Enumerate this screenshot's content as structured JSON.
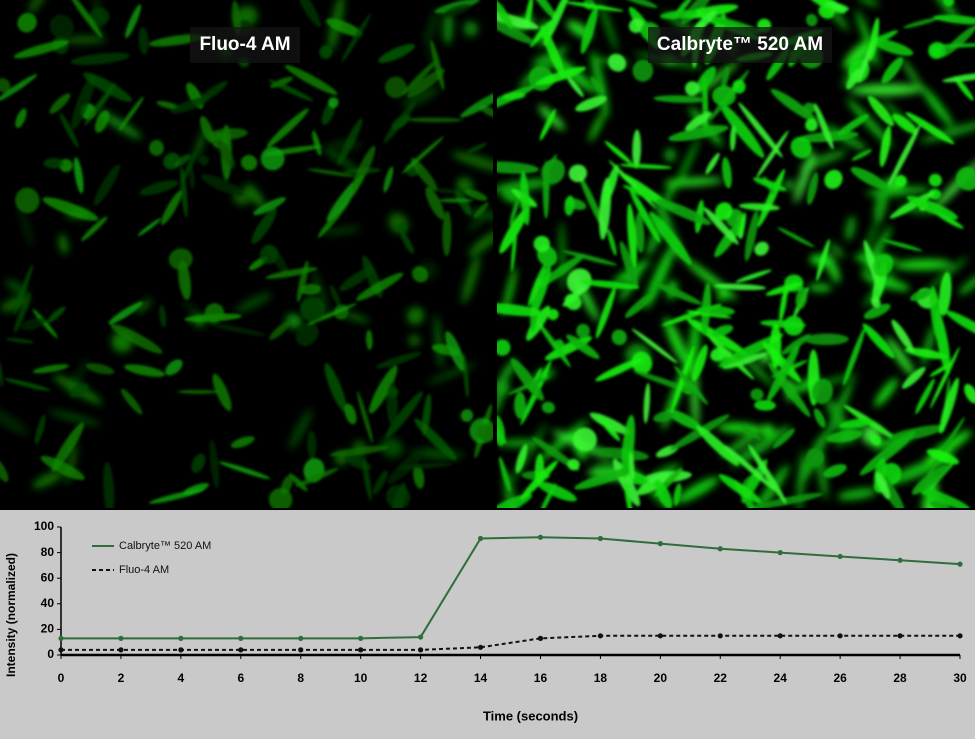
{
  "panels": [
    {
      "label": "Fluo-4 AM",
      "brightness": "dim"
    },
    {
      "label": "Calbryte™ 520 AM",
      "brightness": "bright"
    }
  ],
  "chart_data": {
    "type": "line",
    "x_label": "Time (seconds)",
    "y_label": "Intensity (normalized)",
    "x": [
      0,
      2,
      4,
      6,
      8,
      10,
      12,
      14,
      16,
      18,
      20,
      22,
      24,
      26,
      28,
      30
    ],
    "series": [
      {
        "name": "Calbryte™ 520 AM",
        "color": "#2f6e3c",
        "style": "solid",
        "values": [
          13,
          13,
          13,
          13,
          13,
          13,
          14,
          91,
          92,
          91,
          87,
          83,
          80,
          77,
          74,
          71
        ]
      },
      {
        "name": "Fluo-4 AM",
        "color": "#111111",
        "style": "dashed",
        "values": [
          4,
          4,
          4,
          4,
          4,
          4,
          4,
          6,
          13,
          15,
          15,
          15,
          15,
          15,
          15,
          15
        ]
      }
    ],
    "xlim": [
      0,
      30
    ],
    "xticks": [
      0,
      2,
      4,
      6,
      8,
      10,
      12,
      14,
      16,
      18,
      20,
      22,
      24,
      26,
      28,
      30
    ],
    "ylim": [
      0,
      100
    ],
    "yticks": [
      0,
      20,
      40,
      60,
      80,
      100
    ],
    "legend": "upper-left"
  }
}
